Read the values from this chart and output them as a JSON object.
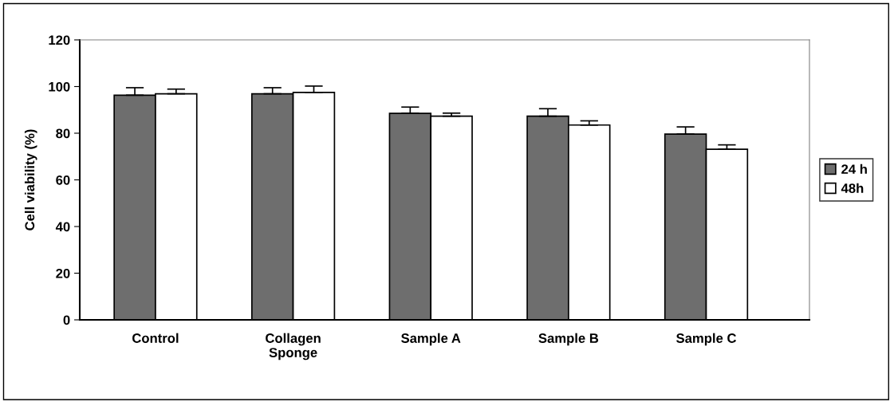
{
  "chart_data": {
    "type": "bar",
    "ylabel": "Cell viability (%)",
    "categories": [
      "Control",
      "Collagen\nSponge",
      "Sample A",
      "Sample B",
      "Sample C"
    ],
    "series": [
      {
        "name": "24 h",
        "color": "#6e6e6e",
        "values": [
          96.3,
          96.9,
          88.5,
          87.3,
          79.6
        ],
        "errors": [
          [
            96.3,
            99.5
          ],
          [
            96.9,
            99.5
          ],
          [
            88.5,
            91.2
          ],
          [
            87.3,
            90.5
          ],
          [
            79.6,
            82.7
          ]
        ]
      },
      {
        "name": "48h",
        "color": "#ffffff",
        "values": [
          96.9,
          97.5,
          87.3,
          83.5,
          73.1
        ],
        "errors": [
          [
            96.9,
            98.9
          ],
          [
            97.5,
            100.2
          ],
          [
            87.3,
            88.6
          ],
          [
            83.5,
            85.3
          ],
          [
            73.1,
            75.0
          ]
        ]
      }
    ],
    "ylim": [
      0,
      120
    ],
    "yticks": [
      0,
      20,
      40,
      60,
      80,
      100,
      120
    ],
    "grid": false,
    "legend": "right"
  }
}
